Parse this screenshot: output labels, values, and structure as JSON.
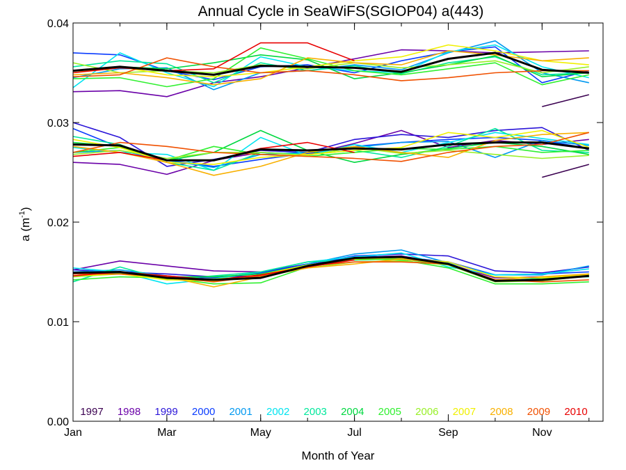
{
  "chart_data": {
    "type": "line",
    "title": "Annual Cycle in SeaWiFS(SGIOP04) a(443)",
    "xlabel": "Month of Year",
    "ylabel": "a (m",
    "ylabel_sup": "-1",
    "ylabel_close": ")",
    "x": [
      1,
      2,
      3,
      4,
      5,
      6,
      7,
      8,
      9,
      10,
      11,
      12
    ],
    "xlim": [
      1,
      12.3
    ],
    "ylim": [
      0.0,
      0.04
    ],
    "x_ticks": [
      {
        "x": 1,
        "label": "Jan"
      },
      {
        "x": 3,
        "label": "Mar"
      },
      {
        "x": 5,
        "label": "May"
      },
      {
        "x": 7,
        "label": "Jul"
      },
      {
        "x": 9,
        "label": "Sep"
      },
      {
        "x": 11,
        "label": "Nov"
      }
    ],
    "y_ticks": [
      {
        "y": 0.0,
        "label": "0.00"
      },
      {
        "y": 0.01,
        "label": "0.01"
      },
      {
        "y": 0.02,
        "label": "0.02"
      },
      {
        "y": 0.03,
        "label": "0.03"
      },
      {
        "y": 0.04,
        "label": "0.04"
      }
    ],
    "grid": false,
    "legend_position": "bottom",
    "series": [
      {
        "name": "1997",
        "color": "#3a0050",
        "bands": [
          [
            null,
            null,
            null,
            null,
            null,
            null,
            null,
            null,
            null,
            null,
            null,
            0.0145
          ],
          [
            null,
            null,
            null,
            null,
            null,
            null,
            null,
            null,
            null,
            null,
            0.0245,
            0.0258
          ],
          [
            null,
            null,
            null,
            null,
            null,
            null,
            null,
            null,
            null,
            null,
            0.0316,
            0.0328
          ]
        ]
      },
      {
        "name": "1998",
        "color": "#6a00a8",
        "bands": [
          [
            0.0152,
            0.0161,
            0.0156,
            0.0151,
            0.015,
            0.0158,
            0.0165,
            0.0166,
            0.0158,
            0.0144,
            0.0145,
            0.0146
          ],
          [
            0.026,
            0.0258,
            0.0248,
            0.0262,
            0.027,
            0.0268,
            0.0279,
            0.0292,
            0.0275,
            0.0282,
            0.0278,
            0.0283
          ],
          [
            0.0331,
            0.0332,
            0.0326,
            0.034,
            0.0346,
            0.0355,
            0.0364,
            0.0373,
            0.0372,
            0.037,
            0.0371,
            0.0372
          ]
        ]
      },
      {
        "name": "1999",
        "color": "#2a14d8",
        "bands": [
          [
            0.0152,
            0.015,
            0.0148,
            0.0145,
            0.0146,
            0.0156,
            0.0166,
            0.0168,
            0.0166,
            0.0151,
            0.0149,
            0.0155
          ],
          [
            0.03,
            0.0285,
            0.0256,
            0.0263,
            0.0272,
            0.027,
            0.0283,
            0.0288,
            0.0285,
            0.0292,
            0.0295,
            0.0272
          ]
        ]
      },
      {
        "name": "2000",
        "color": "#0a3cff",
        "bands": [
          [
            0.0149,
            0.0148,
            0.0145,
            0.0144,
            0.0149,
            0.0158,
            0.0166,
            0.0165,
            0.016,
            0.0147,
            0.0148,
            0.015
          ],
          [
            0.0294,
            0.0275,
            0.0262,
            0.0256,
            0.0263,
            0.0269,
            0.0276,
            0.028,
            0.0283,
            0.0285,
            0.0282,
            0.0274
          ],
          [
            0.037,
            0.0368,
            0.0352,
            0.0343,
            0.0356,
            0.0358,
            0.035,
            0.0362,
            0.0371,
            0.0376,
            0.034,
            0.0352
          ]
        ]
      },
      {
        "name": "2001",
        "color": "#0098f0",
        "bands": [
          [
            0.015,
            0.0152,
            0.0146,
            0.0142,
            0.0145,
            0.0158,
            0.0168,
            0.0172,
            0.0159,
            0.0147,
            0.0147,
            0.0156
          ],
          [
            0.027,
            0.0272,
            0.0262,
            0.0255,
            0.0268,
            0.027,
            0.0275,
            0.028,
            0.0281,
            0.0265,
            0.0282,
            0.0277
          ],
          [
            0.0345,
            0.0354,
            0.0355,
            0.0333,
            0.035,
            0.0352,
            0.0358,
            0.0353,
            0.037,
            0.0382,
            0.035,
            0.034
          ]
        ]
      },
      {
        "name": "2002",
        "color": "#00e4f0",
        "bands": [
          [
            0.0154,
            0.015,
            0.0138,
            0.0143,
            0.015,
            0.016,
            0.0165,
            0.0169,
            0.0155,
            0.0147,
            0.0148,
            0.0153
          ],
          [
            0.0275,
            0.027,
            0.0268,
            0.0252,
            0.0285,
            0.0267,
            0.0278,
            0.027,
            0.028,
            0.029,
            0.0284,
            0.0278
          ],
          [
            0.0335,
            0.037,
            0.035,
            0.0336,
            0.0366,
            0.0356,
            0.0352,
            0.035,
            0.0371,
            0.0378,
            0.0356,
            0.0345
          ]
        ]
      },
      {
        "name": "2003",
        "color": "#00e89c",
        "bands": [
          [
            0.014,
            0.0155,
            0.0142,
            0.0146,
            0.015,
            0.016,
            0.0162,
            0.0163,
            0.0158,
            0.014,
            0.0144,
            0.0145
          ],
          [
            0.0286,
            0.0278,
            0.026,
            0.0252,
            0.027,
            0.0268,
            0.0272,
            0.0265,
            0.0276,
            0.0294,
            0.0272,
            0.027
          ],
          [
            0.0356,
            0.0362,
            0.0359,
            0.034,
            0.036,
            0.0352,
            0.0357,
            0.0349,
            0.036,
            0.0366,
            0.0348,
            0.035
          ]
        ]
      },
      {
        "name": "2004",
        "color": "#00d840",
        "bands": [
          [
            0.0146,
            0.0149,
            0.0145,
            0.0145,
            0.0148,
            0.0157,
            0.0162,
            0.0163,
            0.0157,
            0.0141,
            0.0143,
            0.0148
          ],
          [
            0.028,
            0.0276,
            0.0262,
            0.027,
            0.0292,
            0.0272,
            0.026,
            0.0268,
            0.0274,
            0.028,
            0.0276,
            0.0268
          ],
          [
            0.0352,
            0.0356,
            0.0354,
            0.036,
            0.0368,
            0.0363,
            0.0344,
            0.035,
            0.0358,
            0.0367,
            0.0346,
            0.035
          ]
        ]
      },
      {
        "name": "2005",
        "color": "#30f030",
        "bands": [
          [
            0.0142,
            0.0145,
            0.0144,
            0.0138,
            0.0139,
            0.0155,
            0.0163,
            0.0162,
            0.0154,
            0.0138,
            0.0138,
            0.014
          ],
          [
            0.027,
            0.0275,
            0.0262,
            0.0276,
            0.0268,
            0.0266,
            0.027,
            0.0274,
            0.0273,
            0.0276,
            0.027,
            0.0272
          ],
          [
            0.0344,
            0.0345,
            0.0336,
            0.0344,
            0.0375,
            0.0364,
            0.0352,
            0.0348,
            0.0354,
            0.036,
            0.0338,
            0.0348
          ]
        ]
      },
      {
        "name": "2006",
        "color": "#98f028",
        "bands": [
          [
            0.0145,
            0.0148,
            0.0143,
            0.0143,
            0.0146,
            0.0154,
            0.016,
            0.0161,
            0.0157,
            0.014,
            0.0141,
            0.0146
          ],
          [
            0.0268,
            0.0272,
            0.0264,
            0.027,
            0.027,
            0.0267,
            0.0275,
            0.0269,
            0.0272,
            0.0268,
            0.0264,
            0.0267
          ],
          [
            0.036,
            0.035,
            0.0352,
            0.035,
            0.0358,
            0.0354,
            0.036,
            0.0355,
            0.0358,
            0.0362,
            0.035,
            0.0356
          ]
        ]
      },
      {
        "name": "2007",
        "color": "#f0f000",
        "bands": [
          [
            0.0146,
            0.0148,
            0.0142,
            0.0141,
            0.0147,
            0.0157,
            0.0163,
            0.0164,
            0.016,
            0.0145,
            0.0144,
            0.0147
          ],
          [
            0.0283,
            0.0275,
            0.026,
            0.0258,
            0.0265,
            0.0268,
            0.0272,
            0.0275,
            0.029,
            0.0285,
            0.0292,
            0.0275
          ],
          [
            0.035,
            0.0356,
            0.0348,
            0.0346,
            0.035,
            0.0356,
            0.0362,
            0.0366,
            0.0378,
            0.0372,
            0.0362,
            0.0358
          ]
        ]
      },
      {
        "name": "2008",
        "color": "#f8b000",
        "bands": [
          [
            0.0148,
            0.015,
            0.0145,
            0.0135,
            0.0145,
            0.0154,
            0.0158,
            0.0163,
            0.0158,
            0.0142,
            0.0145,
            0.0148
          ],
          [
            0.0276,
            0.027,
            0.026,
            0.0247,
            0.0256,
            0.027,
            0.0276,
            0.027,
            0.0265,
            0.0282,
            0.0288,
            0.029
          ],
          [
            0.0348,
            0.035,
            0.0345,
            0.0338,
            0.0344,
            0.0365,
            0.036,
            0.0358,
            0.0372,
            0.0368,
            0.0362,
            0.0365
          ]
        ]
      },
      {
        "name": "2009",
        "color": "#f05000",
        "bands": [
          [
            0.0148,
            0.0148,
            0.0145,
            0.014,
            0.0146,
            0.0156,
            0.016,
            0.016,
            0.0158,
            0.0142,
            0.014,
            0.0142
          ],
          [
            0.027,
            0.028,
            0.0276,
            0.027,
            0.0268,
            0.0266,
            0.0264,
            0.0261,
            0.027,
            0.0276,
            0.0278,
            0.029
          ],
          [
            0.0346,
            0.0348,
            0.0365,
            0.0356,
            0.035,
            0.0352,
            0.0348,
            0.0342,
            0.0345,
            0.035,
            0.0352,
            0.0352
          ]
        ]
      },
      {
        "name": "2010",
        "color": "#e80000",
        "bands": [
          [
            0.0146,
            0.015,
            0.0146,
            0.0142,
            0.0147,
            0.0155,
            0.0162,
            null,
            null,
            null,
            null,
            null
          ],
          [
            0.0266,
            0.027,
            0.0262,
            0.0262,
            0.0274,
            0.028,
            0.027,
            null,
            null,
            null,
            null,
            null
          ],
          [
            0.035,
            0.0355,
            0.0352,
            0.0354,
            0.038,
            0.038,
            0.0362,
            null,
            null,
            null,
            null,
            null
          ]
        ]
      }
    ],
    "mean_series": {
      "color": "#000000",
      "bands": [
        [
          0.0149,
          0.015,
          0.0144,
          0.0142,
          0.0144,
          0.0156,
          0.0164,
          0.0165,
          0.0158,
          0.0141,
          0.0142,
          0.0146
        ],
        [
          0.0278,
          0.0277,
          0.0262,
          0.0262,
          0.0273,
          0.0272,
          0.0274,
          0.0273,
          0.0278,
          0.028,
          0.028,
          0.0274
        ],
        [
          0.0352,
          0.0356,
          0.0352,
          0.0348,
          0.0357,
          0.0356,
          0.0355,
          0.0351,
          0.0364,
          0.037,
          0.0353,
          0.035
        ]
      ]
    }
  }
}
